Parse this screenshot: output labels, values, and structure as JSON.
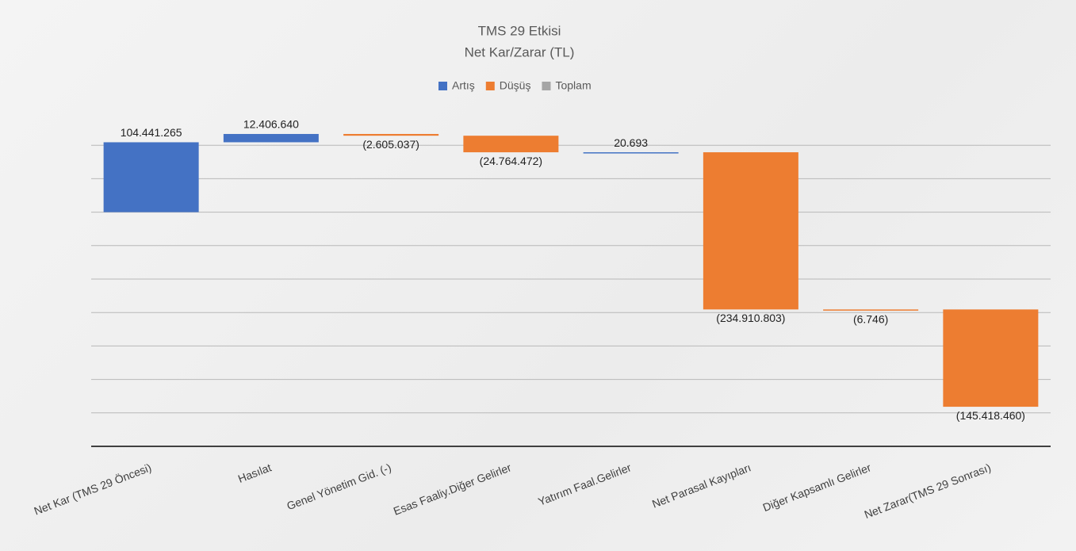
{
  "chart_data": {
    "type": "waterfall",
    "title": "TMS  29 Etkisi",
    "subtitle": "Net Kar/Zarar (TL)",
    "categories": [
      "Net Kar (TMS 29 Öncesi)",
      "Hasılat",
      "Genel Yönetim Gid. (-)",
      "Esas Faaliy.Diğer Gelirler",
      "Yatırım Faal.Gelirler",
      "Net Parasal Kayıpları",
      "Diğer Kapsamlı Gelirler",
      "Net Zarar(TMS 29 Sonrası)"
    ],
    "values": [
      104441265,
      12406640,
      -2605037,
      -24764472,
      20693,
      -234910803,
      -6746,
      -145418460
    ],
    "value_labels": [
      "104.441.265",
      "12.406.640",
      "(2.605.037)",
      "(24.764.472)",
      "20.693",
      "(234.910.803)",
      "(6.746)",
      "(145.418.460)"
    ],
    "series": [
      {
        "name": "Artış",
        "color": "#4472c4"
      },
      {
        "name": "Düşüş",
        "color": "#ed7d31"
      },
      {
        "name": "Toplam",
        "color": "#a5a5a5"
      }
    ],
    "ylim": [
      -350000000,
      150000000
    ],
    "yticks": [
      -300000000,
      -250000000,
      -200000000,
      -150000000,
      -100000000,
      -50000000,
      0,
      50000000,
      100000000
    ],
    "grid": true
  }
}
